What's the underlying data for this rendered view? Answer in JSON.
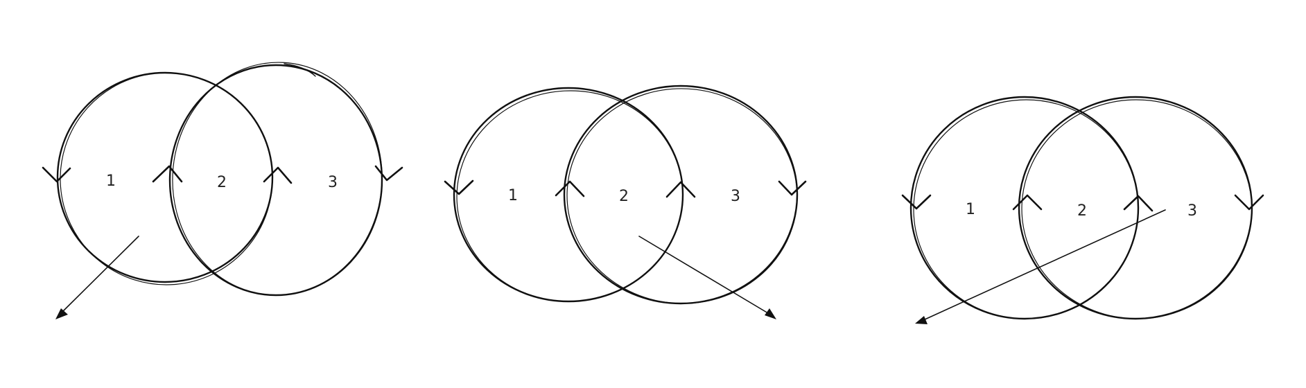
{
  "stroke_color": "#111111",
  "background_color": "#ffffff",
  "diagrams": [
    {
      "id": "diagram-1",
      "labels": [
        "1",
        "2",
        "3"
      ],
      "arrow_direction": "down-left"
    },
    {
      "id": "diagram-2",
      "labels": [
        "1",
        "2",
        "3"
      ],
      "arrow_direction": "down-right"
    },
    {
      "id": "diagram-3",
      "labels": [
        "1",
        "2",
        "3"
      ],
      "arrow_direction": "down-left"
    }
  ]
}
